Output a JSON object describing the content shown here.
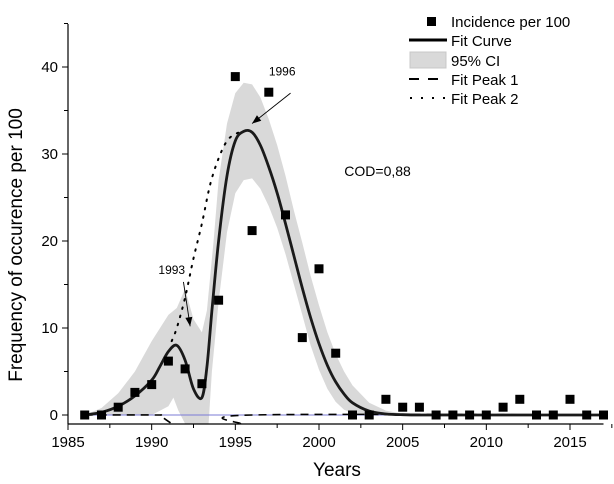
{
  "chart_data": {
    "type": "scatter",
    "title": "",
    "xlabel": "Years",
    "ylabel": "Frequency of occurence per 100",
    "xlim": [
      1985,
      2017
    ],
    "ylim": [
      -1,
      45
    ],
    "x_ticks": [
      1985,
      1990,
      1995,
      2000,
      2005,
      2010,
      2015
    ],
    "x_tick_labels": [
      "1985",
      "1990",
      "1995",
      "2000",
      "2005",
      "2010",
      "2015"
    ],
    "y_ticks": [
      0,
      10,
      20,
      30,
      40
    ],
    "y_tick_labels": [
      "0",
      "10",
      "20",
      "30",
      "40"
    ],
    "grid": false,
    "legend_position": "top-right",
    "legend": [
      {
        "key": "points",
        "label": "Incidence per 100"
      },
      {
        "key": "fit",
        "label": "Fit Curve"
      },
      {
        "key": "ci",
        "label": "95% CI"
      },
      {
        "key": "peak1",
        "label": "Fit Peak 1"
      },
      {
        "key": "peak2",
        "label": "Fit Peak 2"
      }
    ],
    "series": [
      {
        "name": "Incidence per 100",
        "kind": "points",
        "x": [
          1986,
          1987,
          1988,
          1989,
          1990,
          1991,
          1992,
          1993,
          1994,
          1995,
          1996,
          1997,
          1998,
          1999,
          2000,
          2001,
          2002,
          2003,
          2004,
          2005,
          2006,
          2007,
          2008,
          2009,
          2010,
          2011,
          2012,
          2013,
          2014,
          2015,
          2016,
          2017
        ],
        "y": [
          0,
          0,
          0.9,
          2.6,
          3.5,
          6.2,
          5.3,
          3.6,
          13.2,
          38.9,
          21.2,
          37.1,
          23.0,
          8.9,
          16.8,
          7.1,
          0,
          0,
          1.8,
          0.9,
          0.9,
          0,
          0,
          0,
          0,
          0.9,
          1.8,
          0,
          0,
          1.8,
          0,
          0
        ]
      },
      {
        "name": "Fit Curve",
        "kind": "line",
        "x": [
          1986,
          1987,
          1988,
          1989,
          1990,
          1990.5,
          1991,
          1991.5,
          1992,
          1992.5,
          1993,
          1993.3,
          1993.6,
          1994,
          1994.5,
          1995,
          1995.5,
          1996,
          1996.5,
          1997,
          1997.5,
          1998,
          1998.5,
          1999,
          1999.5,
          2000,
          2000.5,
          2001,
          2001.5,
          2002,
          2003,
          2004,
          2005,
          2006,
          2007,
          2010,
          2017
        ],
        "y": [
          0,
          0.3,
          1.0,
          2.2,
          4.0,
          5.6,
          7.3,
          8.0,
          6.3,
          3.0,
          2.0,
          5.5,
          12.0,
          20.0,
          27.5,
          31.5,
          32.6,
          32.5,
          31.0,
          28.5,
          25.5,
          22.0,
          18.3,
          14.6,
          11.2,
          8.2,
          5.7,
          3.8,
          2.4,
          1.4,
          0.45,
          0.12,
          0.03,
          0,
          0,
          0,
          0
        ]
      },
      {
        "name": "95% CI upper",
        "kind": "band_upper",
        "x": [
          1986,
          1987,
          1988,
          1989,
          1990,
          1991,
          1991.5,
          1992,
          1992.5,
          1993,
          1993.3,
          1993.7,
          1994,
          1994.5,
          1995,
          1995.5,
          1996,
          1996.5,
          1997,
          1997.5,
          1998,
          1998.5,
          1999,
          1999.5,
          2000,
          2000.5,
          2001,
          2001.5,
          2002,
          2003,
          2004,
          2005,
          2006,
          2007
        ],
        "y": [
          0,
          0.8,
          2.5,
          5.0,
          8.5,
          11.5,
          12.3,
          14.5,
          11.0,
          9.5,
          12.0,
          20.0,
          27.0,
          33.5,
          37.0,
          38.2,
          38.0,
          36.5,
          34.0,
          31.0,
          27.5,
          23.5,
          19.8,
          16.0,
          12.6,
          9.5,
          7.0,
          5.0,
          3.4,
          1.4,
          0.5,
          0.15,
          0.03,
          0
        ]
      },
      {
        "name": "95% CI lower",
        "kind": "band_lower",
        "x": [
          1986,
          1987,
          1988,
          1989,
          1990,
          1991,
          1991.3,
          1991.6,
          1992,
          1992.5,
          1993,
          1993.4,
          1993.6,
          1994,
          1994.5,
          1995,
          1995.5,
          1996,
          1996.5,
          1997,
          1997.5,
          1998,
          1998.5,
          1999,
          1999.5,
          2000,
          2000.5,
          2001,
          2001.5,
          2002,
          2003,
          2004,
          2005,
          2006,
          2007
        ],
        "y": [
          0,
          0,
          0,
          0,
          0,
          1.0,
          2.0,
          0.5,
          -1,
          -1,
          -1,
          -1,
          5.0,
          13.0,
          21.0,
          25.5,
          27.0,
          27.2,
          26.0,
          24.0,
          21.5,
          18.5,
          15.0,
          11.5,
          8.0,
          5.2,
          3.0,
          1.5,
          0.6,
          0.2,
          0,
          0,
          0,
          0,
          0
        ]
      },
      {
        "name": "Fit Peak 1",
        "kind": "dashed",
        "x": [
          1986,
          1990.2,
          1990.5,
          1991.2
        ],
        "y": [
          0,
          0,
          -0.1,
          -1
        ]
      },
      {
        "name": "Fit Peak 1 (right)",
        "kind": "dashed",
        "x": [
          1995.3,
          1996,
          2017
        ],
        "y": [
          -1,
          0,
          0
        ]
      },
      {
        "name": "Fit Peak 2",
        "kind": "dotted",
        "x": [
          1991.2,
          1991.5,
          1992,
          1992.5,
          1993,
          1993.5,
          1994,
          1994.5,
          1995,
          1995.5
        ],
        "y": [
          8.5,
          10.0,
          13.5,
          18.0,
          22.0,
          26.5,
          29.5,
          31.5,
          32.3,
          32.6
        ]
      }
    ],
    "annotations": [
      {
        "text": "1993",
        "x": 1991.2,
        "y": 16.2,
        "arrow_from": [
          1991.9,
          15.3
        ],
        "arrow_to": [
          1992.3,
          10.2
        ]
      },
      {
        "text": "1996",
        "x": 1997.8,
        "y": 39.0,
        "arrow_from": [
          1998.3,
          37.0
        ],
        "arrow_to": [
          1996.0,
          33.5
        ]
      },
      {
        "text": "COD=0,88",
        "x": 2003.5,
        "y": 27.5
      }
    ],
    "colors": {
      "points": "#000000",
      "fit": "#1a1a1a",
      "ci": "#d9d9d9",
      "baseline": "#7b7bd6",
      "axis": "#000000"
    }
  }
}
